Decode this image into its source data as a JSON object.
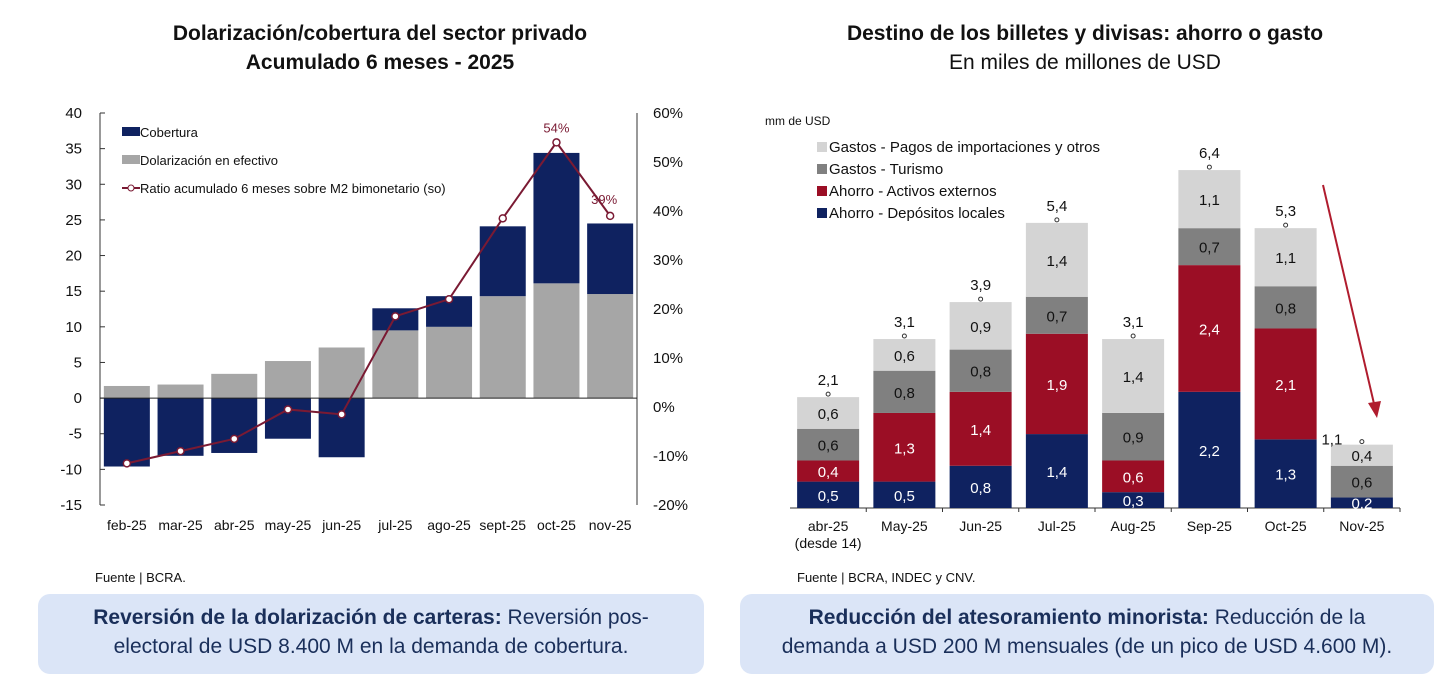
{
  "left": {
    "title": "Dolarización/cobertura del sector privado",
    "subtitle": "Acumulado 6 meses - 2025",
    "source": "Fuente | BCRA.",
    "note_bold": "Reversión de la dolarización de carteras:",
    "note_text": " Reversión pos-electoral de USD 8.400 M en la demanda de cobertura."
  },
  "right": {
    "title": "Destino de los billetes y divisas: ahorro o gasto",
    "subtitle": "En miles de millones de USD",
    "source": "Fuente | BCRA, INDEC y CNV.",
    "note_bold": "Reducción del atesoramiento minorista:",
    "note_text": " Reducción de la demanda a USD 200 M mensuales (de un pico de USD 4.600 M)."
  },
  "chart_data": [
    {
      "type": "bar",
      "stacked": true,
      "categories": [
        "feb-25",
        "mar-25",
        "abr-25",
        "may-25",
        "jun-25",
        "jul-25",
        "ago-25",
        "sept-25",
        "oct-25",
        "nov-25"
      ],
      "ylim": [
        -15,
        40
      ],
      "yticks": [
        -15,
        -10,
        -5,
        0,
        5,
        10,
        15,
        20,
        25,
        30,
        35,
        40
      ],
      "y2lim": [
        -20,
        60
      ],
      "y2ticks": [
        "-20%",
        "-10%",
        "0%",
        "10%",
        "20%",
        "30%",
        "40%",
        "50%",
        "60%"
      ],
      "legend_position": "top-left",
      "series": [
        {
          "name": "Cobertura",
          "color": "#0f2260",
          "values": [
            -9.6,
            -8.1,
            -7.7,
            -5.7,
            -8.3,
            3.1,
            4.3,
            9.8,
            18.3,
            9.9
          ]
        },
        {
          "name": "Dolarización en efectivo",
          "color": "#a6a6a6",
          "values": [
            1.7,
            1.9,
            3.4,
            5.2,
            7.1,
            9.5,
            10.0,
            14.3,
            16.1,
            14.6
          ]
        },
        {
          "name": "Ratio acumulado 6 meses sobre M2 bimonetario (so)",
          "type": "line",
          "axis": "right",
          "color": "#7a1a33",
          "values": [
            -11.5,
            -9,
            -6.5,
            -0.5,
            -1.5,
            18.5,
            22,
            38.5,
            54,
            39
          ],
          "labels": {
            "8": "54%",
            "9": "39%"
          }
        }
      ]
    },
    {
      "type": "bar",
      "stacked": true,
      "ylabel": "mm de USD",
      "categories": [
        "abr-25|(desde 14)",
        "May-25",
        "Jun-25",
        "Jul-25",
        "Aug-25",
        "Sep-25",
        "Oct-25",
        "Nov-25"
      ],
      "totals": [
        "2,1",
        "3,1",
        "3,9",
        "5,4",
        "3,1",
        "6,4",
        "5,3",
        "1,1"
      ],
      "legend_position": "top-left",
      "series": [
        {
          "name": "Ahorro - Depósitos locales",
          "color": "#0f2260",
          "values": [
            0.5,
            0.5,
            0.8,
            1.4,
            0.3,
            2.2,
            1.3,
            0.2
          ]
        },
        {
          "name": "Ahorro - Activos externos",
          "color": "#9b0e25",
          "values": [
            0.4,
            1.3,
            1.4,
            1.9,
            0.6,
            2.4,
            2.1,
            0
          ]
        },
        {
          "name": "Gastos - Turismo",
          "color": "#808080",
          "values": [
            0.6,
            0.8,
            0.8,
            0.7,
            0.9,
            0.7,
            0.8,
            0.6
          ]
        },
        {
          "name": "Gastos - Pagos de importaciones y otros",
          "color": "#d4d4d4",
          "values": [
            0.6,
            0.6,
            0.9,
            1.4,
            1.4,
            1.1,
            1.1,
            0.4
          ]
        }
      ]
    }
  ]
}
